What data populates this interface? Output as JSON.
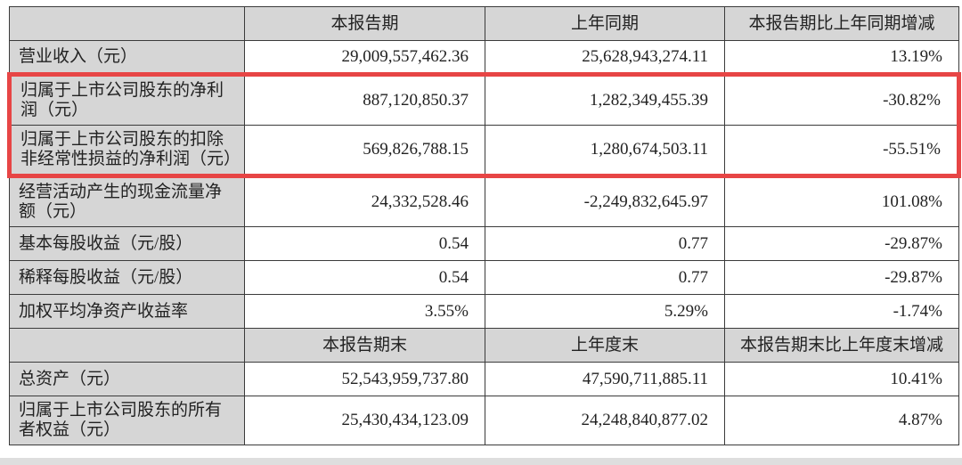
{
  "colors": {
    "page_bg": "#ffffff",
    "table_border": "#3b3b3b",
    "header_bg": "#d6d6d6",
    "label_bg": "#d6d6d6",
    "cell_bg": "#ffffff",
    "text": "#222222",
    "highlight_red": "#e74545",
    "bottom_strip": "#dedede"
  },
  "table": {
    "sections": [
      {
        "name": "period-comparison",
        "columns": [
          "本报告期",
          "上年同期",
          "本报告期比上年同期增减"
        ],
        "rows": [
          {
            "label": "营业收入（元）",
            "values": [
              "29,009,557,462.36",
              "25,628,943,274.11",
              "13.19%"
            ],
            "highlighted": false
          },
          {
            "label": "归属于上市公司股东的净利润（元）",
            "values": [
              "887,120,850.37",
              "1,282,349,455.39",
              "-30.82%"
            ],
            "highlighted": true
          },
          {
            "label": "归属于上市公司股东的扣除非经常性损益的净利润（元）",
            "values": [
              "569,826,788.15",
              "1,280,674,503.11",
              "-55.51%"
            ],
            "highlighted": true
          },
          {
            "label": "经营活动产生的现金流量净额（元）",
            "values": [
              "24,332,528.46",
              "-2,249,832,645.97",
              "101.08%"
            ],
            "highlighted": false
          },
          {
            "label": "基本每股收益（元/股）",
            "values": [
              "0.54",
              "0.77",
              "-29.87%"
            ],
            "highlighted": false
          },
          {
            "label": "稀释每股收益（元/股）",
            "values": [
              "0.54",
              "0.77",
              "-29.87%"
            ],
            "highlighted": false
          },
          {
            "label": "加权平均净资产收益率",
            "values": [
              "3.55%",
              "5.29%",
              "-1.74%"
            ],
            "highlighted": false
          }
        ]
      },
      {
        "name": "period-end-comparison",
        "columns": [
          "本报告期末",
          "上年度末",
          "本报告期末比上年度末增减"
        ],
        "rows": [
          {
            "label": "总资产（元）",
            "values": [
              "52,543,959,737.80",
              "47,590,711,885.11",
              "10.41%"
            ],
            "highlighted": false
          },
          {
            "label": "归属于上市公司股东的所有者权益（元）",
            "values": [
              "25,430,434,123.09",
              "24,248,840,877.02",
              "4.87%"
            ],
            "highlighted": false
          }
        ]
      }
    ]
  }
}
